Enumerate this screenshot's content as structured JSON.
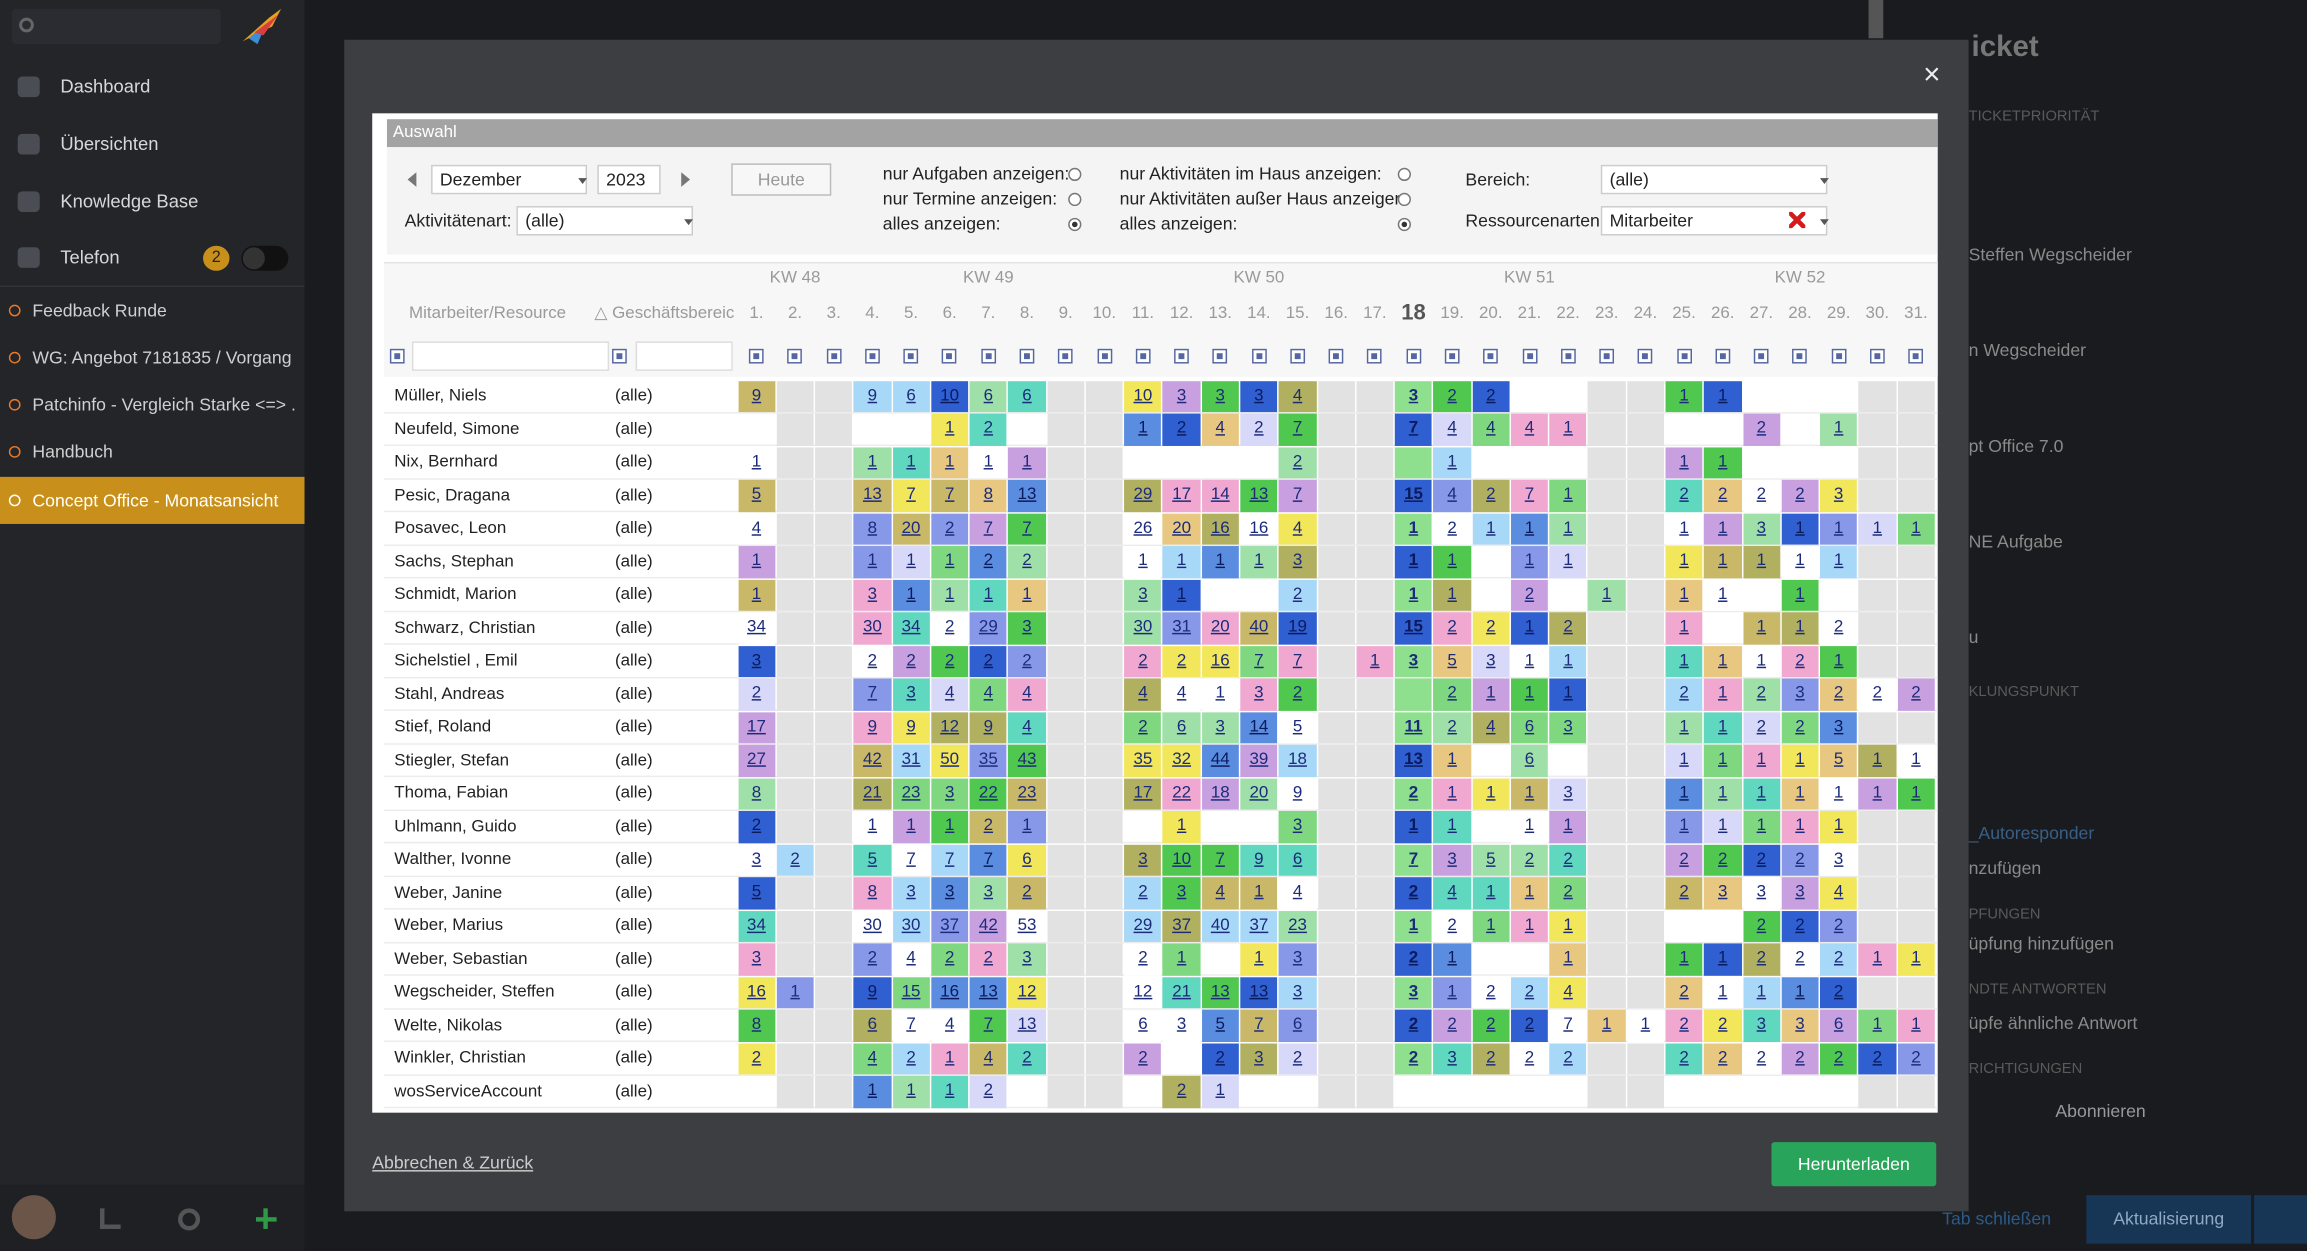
{
  "sidebar": {
    "nav": [
      "Dashboard",
      "Übersichten",
      "Knowledge Base",
      "Telefon"
    ],
    "badge": "2",
    "tabs": [
      "Feedback Runde",
      "WG: Angebot 7181835 / Vorgang ...",
      "Patchinfo - Vergleich Starke <=> ...",
      "Handbuch",
      "Concept Office - Monatsansicht"
    ]
  },
  "background_panel": {
    "title": "icket",
    "labels": [
      "TICKETPRIORITÄT",
      "Steffen Wegscheider",
      "n Wegscheider",
      "pt Office 7.0",
      "NE Aufgabe",
      "u",
      "KLUNGSPUNKT",
      "_Autoresponder",
      "nzufügen",
      "PFUNGEN",
      "üpfung hinzufügen",
      "NDTE ANTWORTEN",
      "üpfe ähnliche Antwort",
      "RICHTIGUNGEN",
      "Abonnieren"
    ],
    "tab_close": "Tab schließen",
    "refresh": "Aktualisierung"
  },
  "modal": {
    "close": "×",
    "section_title": "Auswahl",
    "month": "Dezember",
    "year": "2023",
    "today_button": "Heute",
    "activity_type_label": "Aktivitätenart:",
    "activity_type": "(alle)",
    "filter_options_1": [
      "nur Aufgaben anzeigen:",
      "nur Termine anzeigen:",
      "alles anzeigen:"
    ],
    "filter_options_2": [
      "nur Aktivitäten im Haus anzeigen:",
      "nur Aktivitäten außer Haus anzeigen:",
      "alles anzeigen:"
    ],
    "area_label": "Bereich:",
    "area": "(alle)",
    "resource_types_label": "Ressourcenarten:",
    "resource_types": "Mitarbeiter",
    "table": {
      "weeks": [
        "KW 48",
        "KW 49",
        "KW 50",
        "KW 51",
        "KW 52"
      ],
      "columns": [
        "Mitarbeiter/Resource",
        "△ Geschäftsbereic"
      ],
      "days": [
        "1.",
        "2.",
        "3.",
        "4.",
        "5.",
        "6.",
        "7.",
        "8.",
        "9.",
        "10.",
        "11.",
        "12.",
        "13.",
        "14.",
        "15.",
        "16.",
        "17.",
        "18",
        "19.",
        "20.",
        "21.",
        "22.",
        "23.",
        "24.",
        "25.",
        "26.",
        "27.",
        "28.",
        "29.",
        "30.",
        "31."
      ],
      "rows": [
        {
          "name": "Müller, Niels",
          "area": "(alle)",
          "days": [
            9,
            null,
            null,
            9,
            6,
            10,
            6,
            6,
            null,
            null,
            10,
            3,
            3,
            3,
            4,
            null,
            null,
            3,
            2,
            2,
            null,
            null,
            null,
            null,
            1,
            1,
            null,
            null,
            null,
            null,
            null
          ]
        },
        {
          "name": "Neufeld, Simone",
          "area": "(alle)",
          "days": [
            null,
            null,
            null,
            null,
            null,
            1,
            2,
            null,
            null,
            null,
            1,
            2,
            4,
            2,
            7,
            null,
            null,
            7,
            4,
            4,
            4,
            1,
            null,
            null,
            null,
            null,
            2,
            null,
            1,
            null,
            null
          ]
        },
        {
          "name": "Nix, Bernhard",
          "area": "(alle)",
          "days": [
            1,
            null,
            null,
            1,
            1,
            1,
            1,
            1,
            null,
            null,
            null,
            null,
            null,
            null,
            2,
            null,
            null,
            null,
            1,
            null,
            null,
            null,
            null,
            null,
            1,
            1,
            null,
            null,
            null,
            null,
            null
          ]
        },
        {
          "name": "Pesic, Dragana",
          "area": "(alle)",
          "days": [
            5,
            null,
            null,
            13,
            7,
            7,
            8,
            13,
            null,
            null,
            29,
            17,
            14,
            13,
            7,
            null,
            null,
            15,
            4,
            2,
            7,
            1,
            null,
            null,
            2,
            2,
            2,
            2,
            3,
            null,
            null
          ]
        },
        {
          "name": "Posavec, Leon",
          "area": "(alle)",
          "days": [
            4,
            null,
            null,
            8,
            20,
            2,
            7,
            7,
            null,
            null,
            26,
            20,
            16,
            16,
            4,
            null,
            null,
            1,
            2,
            1,
            1,
            1,
            null,
            null,
            1,
            1,
            3,
            1,
            1,
            1,
            1
          ]
        },
        {
          "name": "Sachs, Stephan",
          "area": "(alle)",
          "days": [
            1,
            null,
            null,
            1,
            1,
            1,
            2,
            2,
            null,
            null,
            1,
            1,
            1,
            1,
            3,
            null,
            null,
            1,
            1,
            null,
            1,
            1,
            null,
            null,
            1,
            1,
            1,
            1,
            1,
            null,
            null
          ]
        },
        {
          "name": "Schmidt, Marion",
          "area": "(alle)",
          "days": [
            1,
            null,
            null,
            3,
            1,
            1,
            1,
            1,
            null,
            null,
            3,
            1,
            null,
            null,
            2,
            null,
            null,
            1,
            1,
            null,
            2,
            null,
            1,
            null,
            1,
            1,
            null,
            1,
            null,
            null,
            null
          ]
        },
        {
          "name": "Schwarz, Christian",
          "area": "(alle)",
          "days": [
            34,
            null,
            null,
            30,
            34,
            2,
            29,
            3,
            null,
            null,
            30,
            31,
            20,
            40,
            19,
            null,
            null,
            15,
            2,
            2,
            1,
            2,
            null,
            null,
            1,
            null,
            1,
            1,
            2,
            null,
            null
          ]
        },
        {
          "name": "Sichelstiel , Emil",
          "area": "(alle)",
          "days": [
            3,
            null,
            null,
            2,
            2,
            2,
            2,
            2,
            null,
            null,
            2,
            2,
            16,
            7,
            7,
            null,
            1,
            3,
            5,
            3,
            1,
            1,
            null,
            null,
            1,
            1,
            1,
            2,
            1,
            null,
            null
          ]
        },
        {
          "name": "Stahl, Andreas",
          "area": "(alle)",
          "days": [
            2,
            null,
            null,
            7,
            3,
            4,
            4,
            4,
            null,
            null,
            4,
            4,
            1,
            3,
            2,
            null,
            null,
            null,
            2,
            1,
            1,
            1,
            null,
            null,
            2,
            1,
            2,
            3,
            2,
            2,
            2
          ]
        },
        {
          "name": "Stief, Roland",
          "area": "(alle)",
          "days": [
            17,
            null,
            null,
            9,
            9,
            12,
            9,
            4,
            null,
            null,
            2,
            6,
            3,
            14,
            5,
            null,
            null,
            11,
            2,
            4,
            6,
            3,
            null,
            null,
            1,
            1,
            2,
            2,
            3,
            null,
            null
          ]
        },
        {
          "name": "Stiegler, Stefan",
          "area": "(alle)",
          "days": [
            27,
            null,
            null,
            42,
            31,
            50,
            35,
            43,
            null,
            null,
            35,
            32,
            44,
            39,
            18,
            null,
            null,
            13,
            1,
            null,
            6,
            null,
            null,
            null,
            1,
            1,
            1,
            1,
            5,
            1,
            1
          ]
        },
        {
          "name": "Thoma, Fabian",
          "area": "(alle)",
          "days": [
            8,
            null,
            null,
            21,
            23,
            3,
            22,
            23,
            null,
            null,
            17,
            22,
            18,
            20,
            9,
            null,
            null,
            2,
            1,
            1,
            1,
            3,
            null,
            null,
            1,
            1,
            1,
            1,
            1,
            1,
            1
          ]
        },
        {
          "name": "Uhlmann, Guido",
          "area": "(alle)",
          "days": [
            2,
            null,
            null,
            1,
            1,
            1,
            2,
            1,
            null,
            null,
            null,
            1,
            null,
            null,
            3,
            null,
            null,
            1,
            1,
            null,
            1,
            1,
            null,
            null,
            1,
            1,
            1,
            1,
            1,
            null,
            null
          ]
        },
        {
          "name": "Walther, Ivonne",
          "area": "(alle)",
          "days": [
            3,
            2,
            null,
            5,
            7,
            7,
            7,
            6,
            null,
            null,
            3,
            10,
            7,
            9,
            6,
            null,
            null,
            7,
            3,
            5,
            2,
            2,
            null,
            null,
            2,
            2,
            2,
            2,
            3,
            null,
            null
          ]
        },
        {
          "name": "Weber, Janine",
          "area": "(alle)",
          "days": [
            5,
            null,
            null,
            8,
            3,
            3,
            3,
            2,
            null,
            null,
            2,
            3,
            4,
            1,
            4,
            null,
            null,
            2,
            4,
            1,
            1,
            2,
            null,
            null,
            2,
            3,
            3,
            3,
            4,
            null,
            null
          ]
        },
        {
          "name": "Weber, Marius",
          "area": "(alle)",
          "days": [
            34,
            null,
            null,
            30,
            30,
            37,
            42,
            53,
            null,
            null,
            29,
            37,
            40,
            37,
            23,
            null,
            null,
            1,
            2,
            1,
            1,
            1,
            null,
            null,
            null,
            null,
            2,
            2,
            2,
            null,
            null
          ]
        },
        {
          "name": "Weber, Sebastian",
          "area": "(alle)",
          "days": [
            3,
            null,
            null,
            2,
            4,
            2,
            2,
            3,
            null,
            null,
            2,
            1,
            null,
            1,
            3,
            null,
            null,
            2,
            1,
            null,
            null,
            1,
            null,
            null,
            1,
            1,
            2,
            2,
            2,
            1,
            1
          ]
        },
        {
          "name": "Wegscheider, Steffen",
          "area": "(alle)",
          "days": [
            16,
            1,
            null,
            9,
            15,
            16,
            13,
            12,
            null,
            null,
            12,
            21,
            13,
            13,
            3,
            null,
            null,
            3,
            1,
            2,
            2,
            4,
            null,
            null,
            2,
            1,
            1,
            1,
            2,
            null,
            null
          ]
        },
        {
          "name": "Welte, Nikolas",
          "area": "(alle)",
          "days": [
            8,
            null,
            null,
            6,
            7,
            4,
            7,
            13,
            null,
            null,
            6,
            3,
            5,
            7,
            6,
            null,
            null,
            2,
            2,
            2,
            2,
            7,
            1,
            1,
            2,
            2,
            3,
            3,
            6,
            1,
            1
          ]
        },
        {
          "name": "Winkler, Christian",
          "area": "(alle)",
          "days": [
            2,
            null,
            null,
            4,
            2,
            1,
            4,
            2,
            null,
            null,
            2,
            null,
            2,
            3,
            2,
            null,
            null,
            2,
            3,
            2,
            2,
            2,
            null,
            null,
            2,
            2,
            2,
            2,
            2,
            2,
            2
          ]
        },
        {
          "name": "wosServiceAccount",
          "area": "(alle)",
          "days": [
            null,
            null,
            null,
            1,
            1,
            1,
            2,
            null,
            null,
            null,
            null,
            2,
            1,
            null,
            null,
            null,
            null,
            null,
            null,
            null,
            null,
            null,
            null,
            null,
            null,
            null,
            null,
            null,
            null,
            null,
            null
          ]
        }
      ]
    },
    "cancel": "Abbrechen & Zurück",
    "download": "Herunterladen"
  }
}
